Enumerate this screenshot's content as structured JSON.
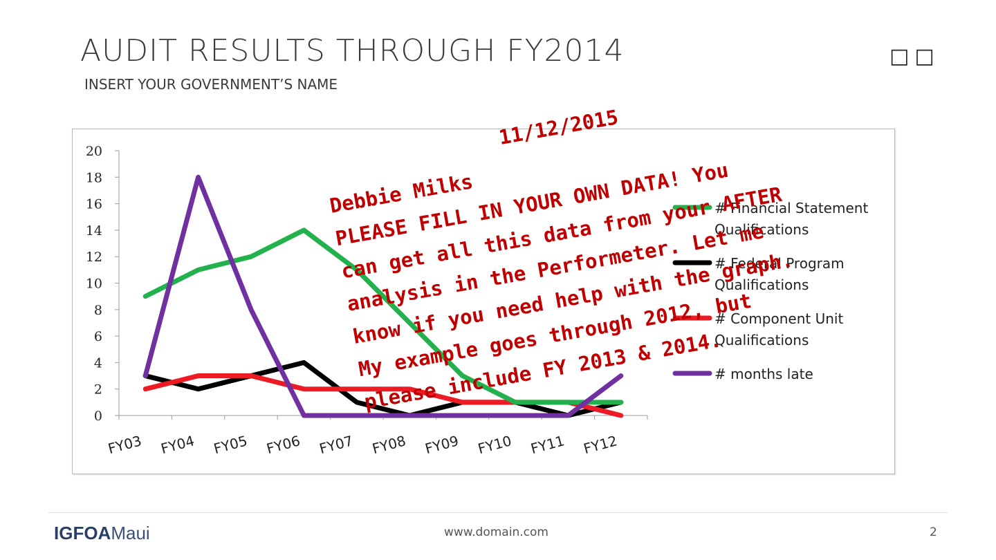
{
  "slide": {
    "title": "AUDIT RESULTS THROUGH FY2014",
    "subtitle": "INSERT YOUR GOVERNMENT’S NAME",
    "corner_glyphs": "□□",
    "page_number": "2"
  },
  "footer": {
    "logo_strong": "IGFOA",
    "logo_light": "Maui",
    "url": "www.domain.com"
  },
  "overlay_note": {
    "color": "#c00000",
    "lines": [
      "11/12/2015",
      "Debbie Milks",
      "PLEASE FILL IN YOUR OWN DATA!  You",
      "can get all this data from your AFTER",
      "analysis in the Performeter.  Let me",
      "know if you need help with the graph.",
      "My example goes through 2012, but",
      "please include FY 2013 & 2014."
    ]
  },
  "chart_data": {
    "type": "line",
    "categories": [
      "FY03",
      "FY04",
      "FY05",
      "FY06",
      "FY07",
      "FY08",
      "FY09",
      "FY10",
      "FY11",
      "FY12"
    ],
    "ylim": [
      0,
      20
    ],
    "yticks": [
      0,
      2,
      4,
      6,
      8,
      10,
      12,
      14,
      16,
      18,
      20
    ],
    "ytick_labels": [
      "0",
      "2",
      "4",
      "6",
      "8",
      "10",
      "12",
      "14",
      "16",
      "18",
      "20"
    ],
    "grid": false,
    "legend_position": "right",
    "series": [
      {
        "name": "# Financial Statement Qualifications",
        "legend_lines": [
          "# Financial Statement",
          "Qualifications"
        ],
        "color": "#22b14c",
        "values": [
          9,
          11,
          12,
          14,
          11,
          7,
          3,
          1,
          1,
          1
        ]
      },
      {
        "name": "# Federal Program Qualifications",
        "legend_lines": [
          "# Federal Program",
          "Qualifications"
        ],
        "color": "#000000",
        "values": [
          3,
          2,
          3,
          4,
          1,
          0,
          1,
          1,
          0,
          1
        ]
      },
      {
        "name": "# Component Unit Qualifications",
        "legend_lines": [
          "# Component Unit",
          "Qualifications"
        ],
        "color": "#ed1c24",
        "values": [
          2,
          3,
          3,
          2,
          2,
          2,
          1,
          1,
          1,
          0
        ]
      },
      {
        "name": "# months late",
        "legend_lines": [
          "# months late"
        ],
        "color": "#7030a0",
        "values": [
          3,
          18,
          8,
          0,
          0,
          0,
          0,
          0,
          0,
          3
        ]
      }
    ]
  }
}
